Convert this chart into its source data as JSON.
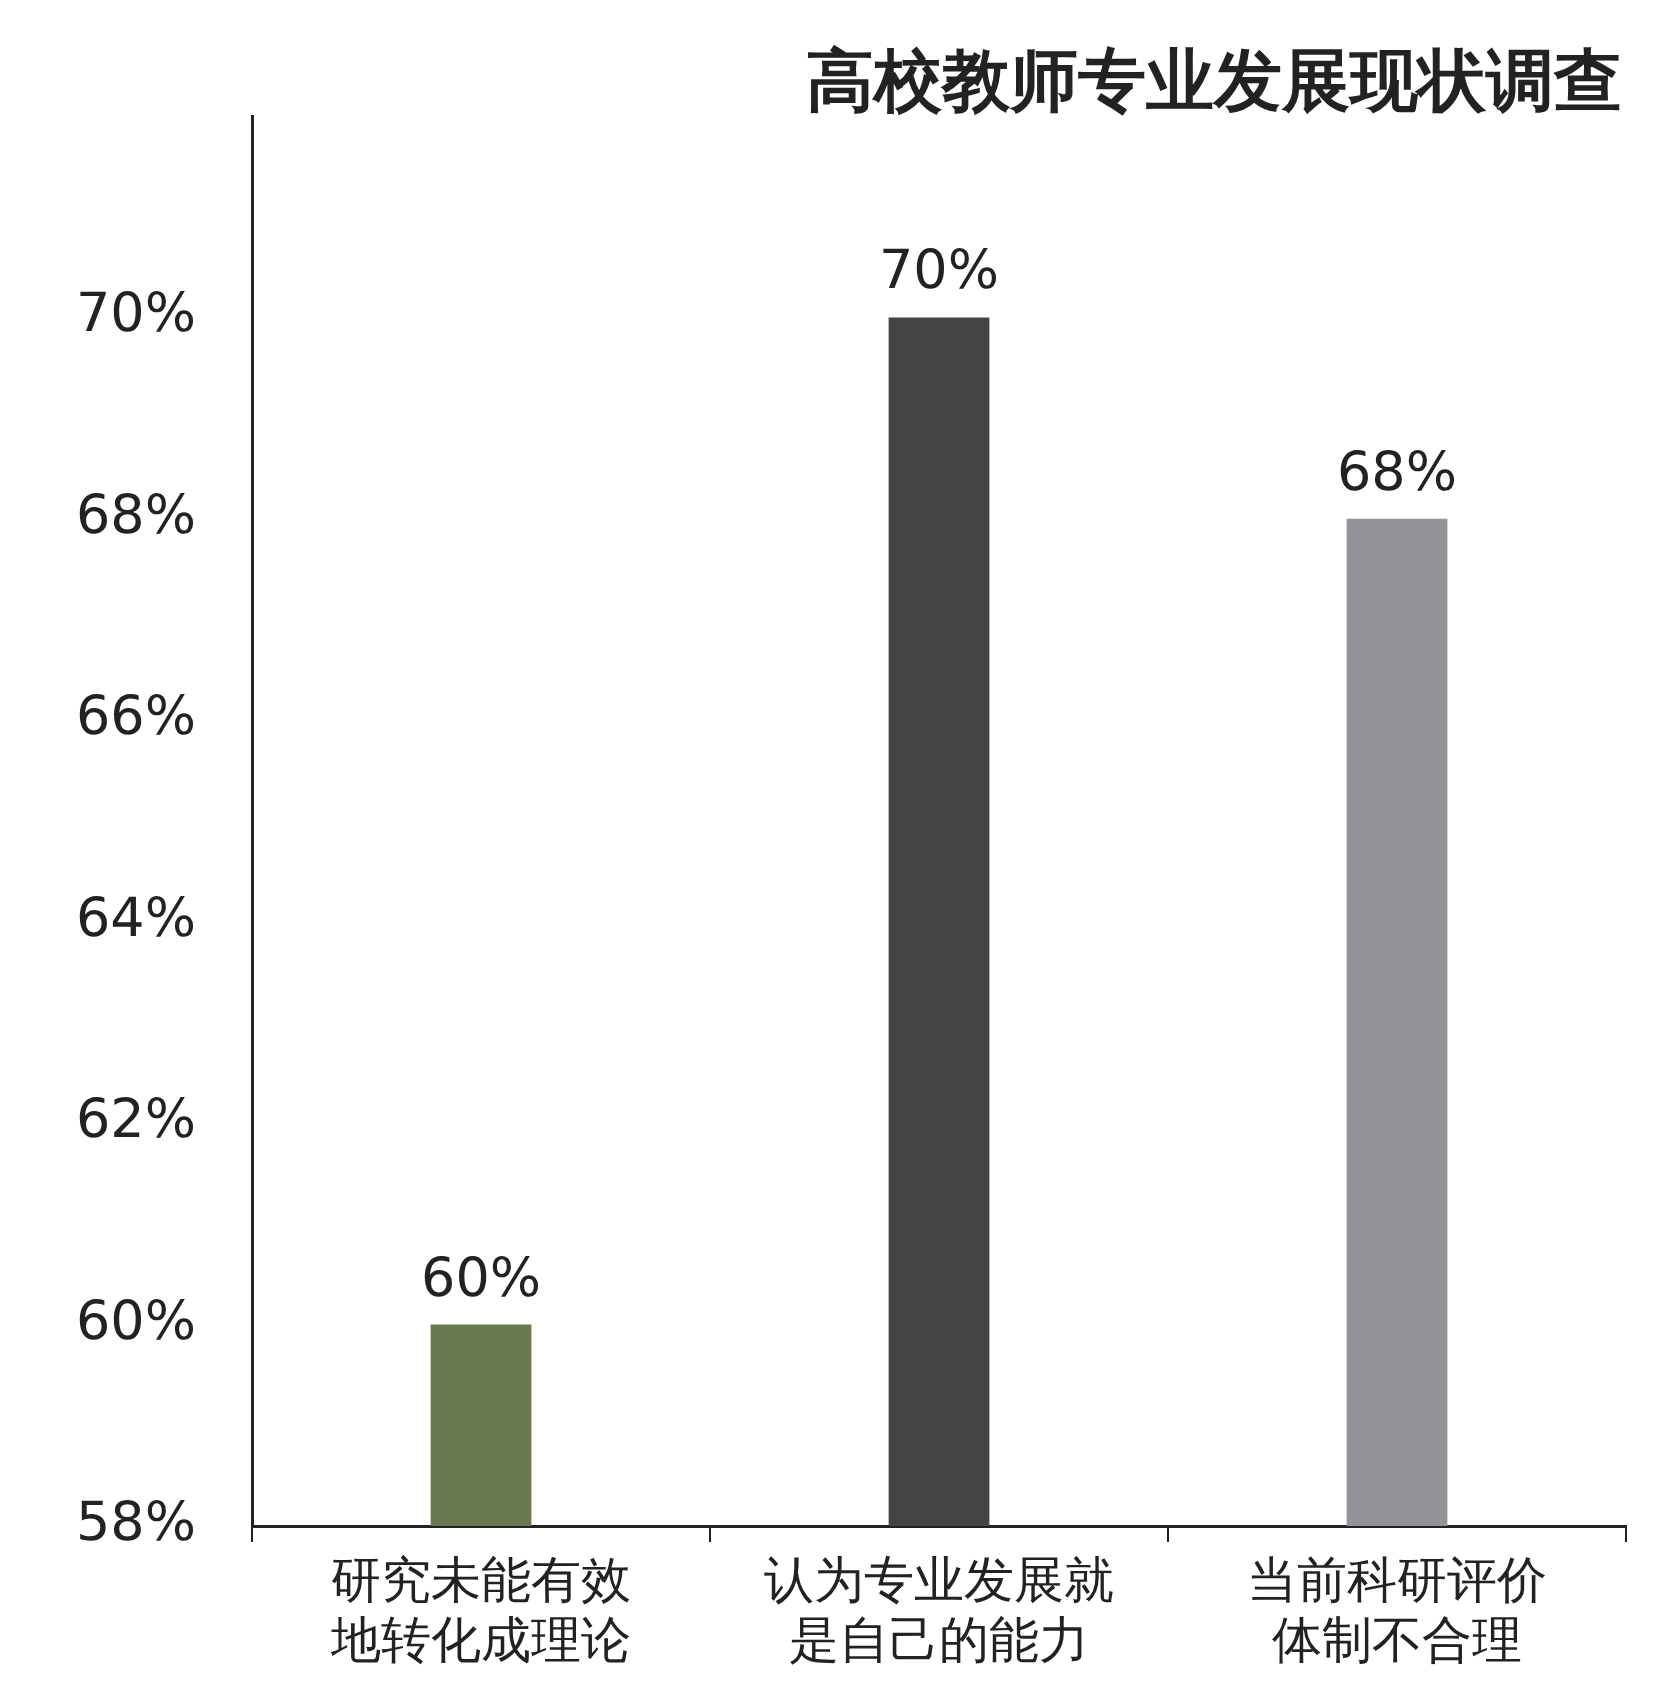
{
  "chart_data": {
    "type": "bar",
    "title": "高校教师专业发展现状调查",
    "categories": [
      "研究未能有效地转化成理论",
      "认为专业发展就是自己的能力",
      "当前科研评价体制不合理"
    ],
    "values": [
      60,
      70,
      68
    ],
    "colors": [
      "#6b7a4e",
      "#444446",
      "#939497"
    ],
    "value_labels": [
      "60%",
      "70%",
      "68%"
    ],
    "ylim": [
      58,
      72
    ],
    "yticks": [
      {
        "value": 58,
        "label": "58%"
      },
      {
        "value": 60,
        "label": "60%"
      },
      {
        "value": 62,
        "label": "62%"
      },
      {
        "value": 64,
        "label": "64%"
      },
      {
        "value": 66,
        "label": "66%"
      },
      {
        "value": 68,
        "label": "68%"
      },
      {
        "value": 70,
        "label": "70%"
      }
    ],
    "legend": false
  }
}
